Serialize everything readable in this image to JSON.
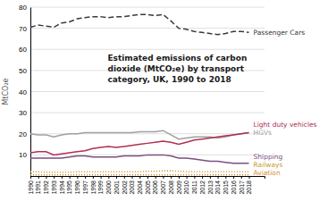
{
  "chart_data": {
    "type": "line",
    "title": "Estimated emissions of carbon\ndioxide (MtCO₂e) by transport\ncategory, UK, 1990 to 2018",
    "y_label": "MtCO₂e",
    "x": [
      1990,
      1991,
      1992,
      1993,
      1994,
      1995,
      1996,
      1997,
      1998,
      1999,
      2000,
      2001,
      2002,
      2003,
      2004,
      2005,
      2006,
      2007,
      2008,
      2009,
      2010,
      2011,
      2012,
      2013,
      2014,
      2015,
      2016,
      2017,
      2018
    ],
    "xlim": [
      1990,
      2020
    ],
    "xticks": [
      1990,
      1991,
      1992,
      1993,
      1994,
      1995,
      1996,
      1997,
      1998,
      1999,
      2000,
      2001,
      2002,
      2003,
      2004,
      2005,
      2006,
      2007,
      2008,
      2009,
      2010,
      2011,
      2012,
      2013,
      2014,
      2015,
      2016,
      2017,
      2018
    ],
    "ylim": [
      0,
      80
    ],
    "yticks": [
      10,
      20,
      30,
      40,
      50,
      60,
      70,
      80
    ],
    "grid": true,
    "series": [
      {
        "name": "Passenger Cars",
        "color": "#3a3a3a",
        "line_style": "dashed",
        "values": [
          70.5,
          71.5,
          71.0,
          70.5,
          72.5,
          73.0,
          74.5,
          75.0,
          75.5,
          75.5,
          75.0,
          75.5,
          75.5,
          76.0,
          76.5,
          76.5,
          76.0,
          76.5,
          73.5,
          70.0,
          69.5,
          68.5,
          68.0,
          67.5,
          67.0,
          67.5,
          68.5,
          68.5,
          68.0
        ]
      },
      {
        "name": "HGVs",
        "color": "#a0a0a0",
        "line_style": "solid",
        "values": [
          20.0,
          19.5,
          19.5,
          18.5,
          19.5,
          20.0,
          20.0,
          20.5,
          20.5,
          20.5,
          20.5,
          20.5,
          20.5,
          20.5,
          21.0,
          21.0,
          21.0,
          21.5,
          19.5,
          17.5,
          18.0,
          18.5,
          18.5,
          18.5,
          18.0,
          18.5,
          19.5,
          20.0,
          20.5
        ]
      },
      {
        "name": "Light duty vehicles",
        "color": "#b03050",
        "line_style": "solid",
        "values": [
          11.0,
          11.5,
          11.5,
          10.0,
          10.5,
          11.0,
          11.5,
          12.0,
          13.0,
          13.5,
          14.0,
          13.5,
          14.0,
          14.5,
          15.0,
          15.5,
          16.0,
          16.5,
          16.0,
          15.0,
          16.0,
          17.0,
          17.5,
          18.0,
          18.5,
          19.0,
          19.5,
          20.0,
          20.5
        ]
      },
      {
        "name": "Shipping",
        "color": "#7b4f7e",
        "line_style": "solid",
        "values": [
          8.5,
          8.5,
          8.5,
          8.5,
          8.5,
          9.0,
          9.5,
          9.5,
          9.0,
          9.0,
          9.0,
          9.0,
          9.5,
          9.5,
          9.5,
          10.0,
          10.0,
          10.0,
          9.5,
          8.5,
          8.5,
          8.0,
          7.5,
          7.0,
          7.0,
          6.5,
          6.0,
          6.0,
          6.0
        ]
      },
      {
        "name": "Railways",
        "color": "#c8a030",
        "line_style": "dotted",
        "values": [
          2.0,
          2.0,
          1.8,
          1.8,
          1.8,
          1.8,
          2.0,
          2.0,
          2.0,
          2.0,
          2.0,
          2.0,
          2.0,
          2.0,
          2.0,
          2.2,
          2.2,
          2.5,
          2.5,
          2.2,
          2.0,
          2.0,
          2.0,
          2.0,
          2.0,
          2.0,
          2.0,
          2.0,
          2.0
        ]
      },
      {
        "name": "Aviation",
        "color": "#d49030",
        "line_style": "dotted",
        "values": [
          0.5,
          0.5,
          0.5,
          0.5,
          0.5,
          0.5,
          0.5,
          0.5,
          0.5,
          0.5,
          0.5,
          0.5,
          0.5,
          0.5,
          0.5,
          0.5,
          0.5,
          0.5,
          0.5,
          0.5,
          0.5,
          0.5,
          0.5,
          0.5,
          0.5,
          0.5,
          0.5,
          0.5,
          0.5
        ]
      }
    ]
  }
}
